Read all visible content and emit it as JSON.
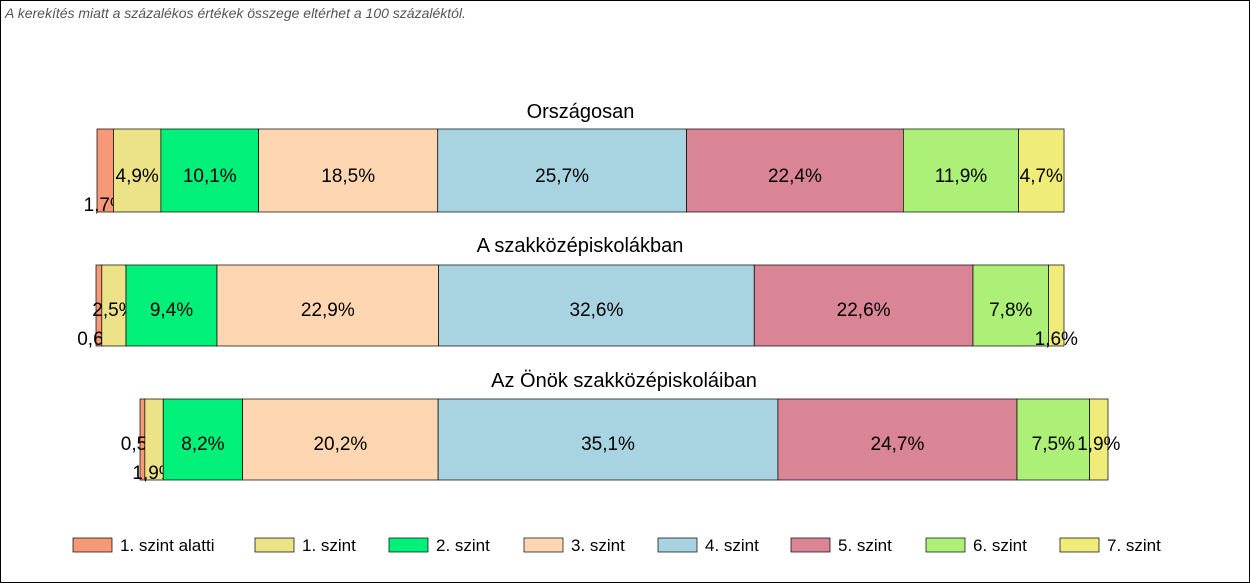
{
  "note": "A kerekítés miatt a  százalékos értékek összege eltérhet a 100 százaléktól.",
  "colors": {
    "1. szint alatti": "#f79977",
    "1. szint": "#ece288",
    "2. szint": "#00f07a",
    "3. szint": "#fed7b2",
    "4. szint": "#a8d4e2",
    "5. szint": "#d98596",
    "6. szint": "#acf078",
    "7. szint": "#f0ec7a"
  },
  "chart_data": {
    "type": "bar",
    "orientation": "horizontal",
    "stacked": true,
    "unit": "%",
    "categories": [
      "1. szint alatti",
      "1. szint",
      "2. szint",
      "3. szint",
      "4. szint",
      "5. szint",
      "6. szint",
      "7. szint"
    ],
    "legend_position": "bottom",
    "bars": [
      {
        "title": "Országosan",
        "values": [
          1.7,
          4.9,
          10.1,
          18.5,
          25.7,
          22.4,
          11.9,
          4.7
        ],
        "labels": [
          "1,7%",
          "4,9%",
          "10,1%",
          "18,5%",
          "25,7%",
          "22,4%",
          "11,9%",
          "4,7%"
        ]
      },
      {
        "title": "A szakközépiskolákban",
        "values": [
          0.6,
          2.5,
          9.4,
          22.9,
          32.6,
          22.6,
          7.8,
          1.6
        ],
        "labels": [
          "0,6%",
          "2,5%",
          "9,4%",
          "22,9%",
          "32,6%",
          "22,6%",
          "7,8%",
          "1,6%"
        ]
      },
      {
        "title": "Az Önök szakközépiskoláiban",
        "values": [
          0.5,
          1.9,
          8.2,
          20.2,
          35.1,
          24.7,
          7.5,
          1.9
        ],
        "labels": [
          "0,5%",
          "1,9%",
          "8,2%",
          "20,2%",
          "35,1%",
          "24,7%",
          "7,5%",
          "1,9%"
        ]
      }
    ]
  }
}
